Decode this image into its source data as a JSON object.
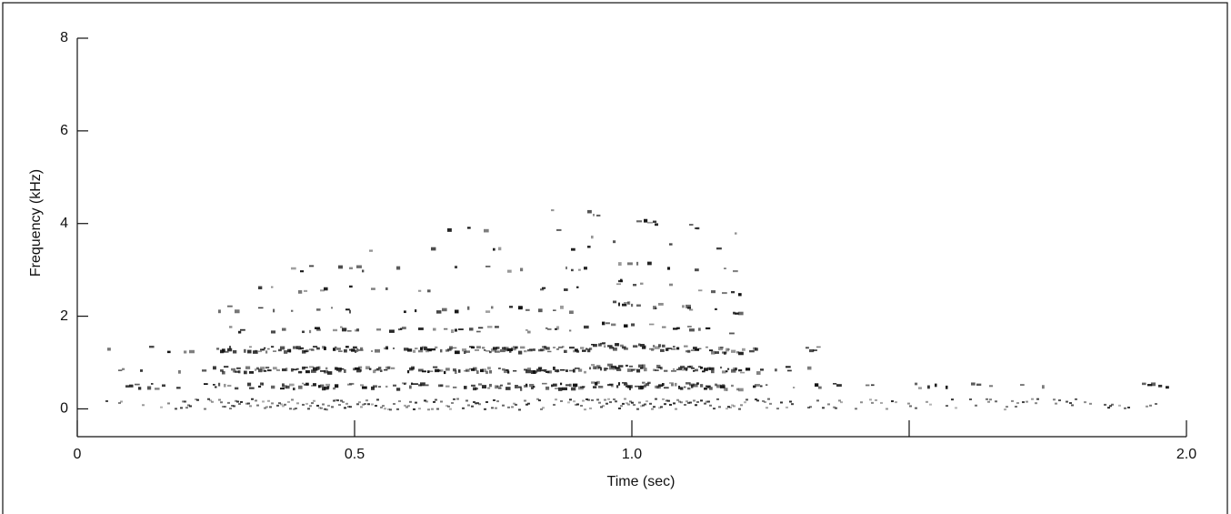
{
  "chart_data": {
    "type": "spectrogram",
    "x_label": "Time (sec)",
    "y_label": "Frequency (kHz)",
    "xlim": [
      0,
      2
    ],
    "xticks": [
      0,
      0.5,
      {
        "value": 1,
        "label": "1.0"
      },
      {
        "value": 1.5,
        "label": null
      },
      {
        "value": 2,
        "label": "2.0"
      }
    ],
    "ylim": [
      -0.6,
      8
    ],
    "yticks": [
      0,
      2,
      4,
      6,
      8
    ],
    "color": "#111111"
  }
}
